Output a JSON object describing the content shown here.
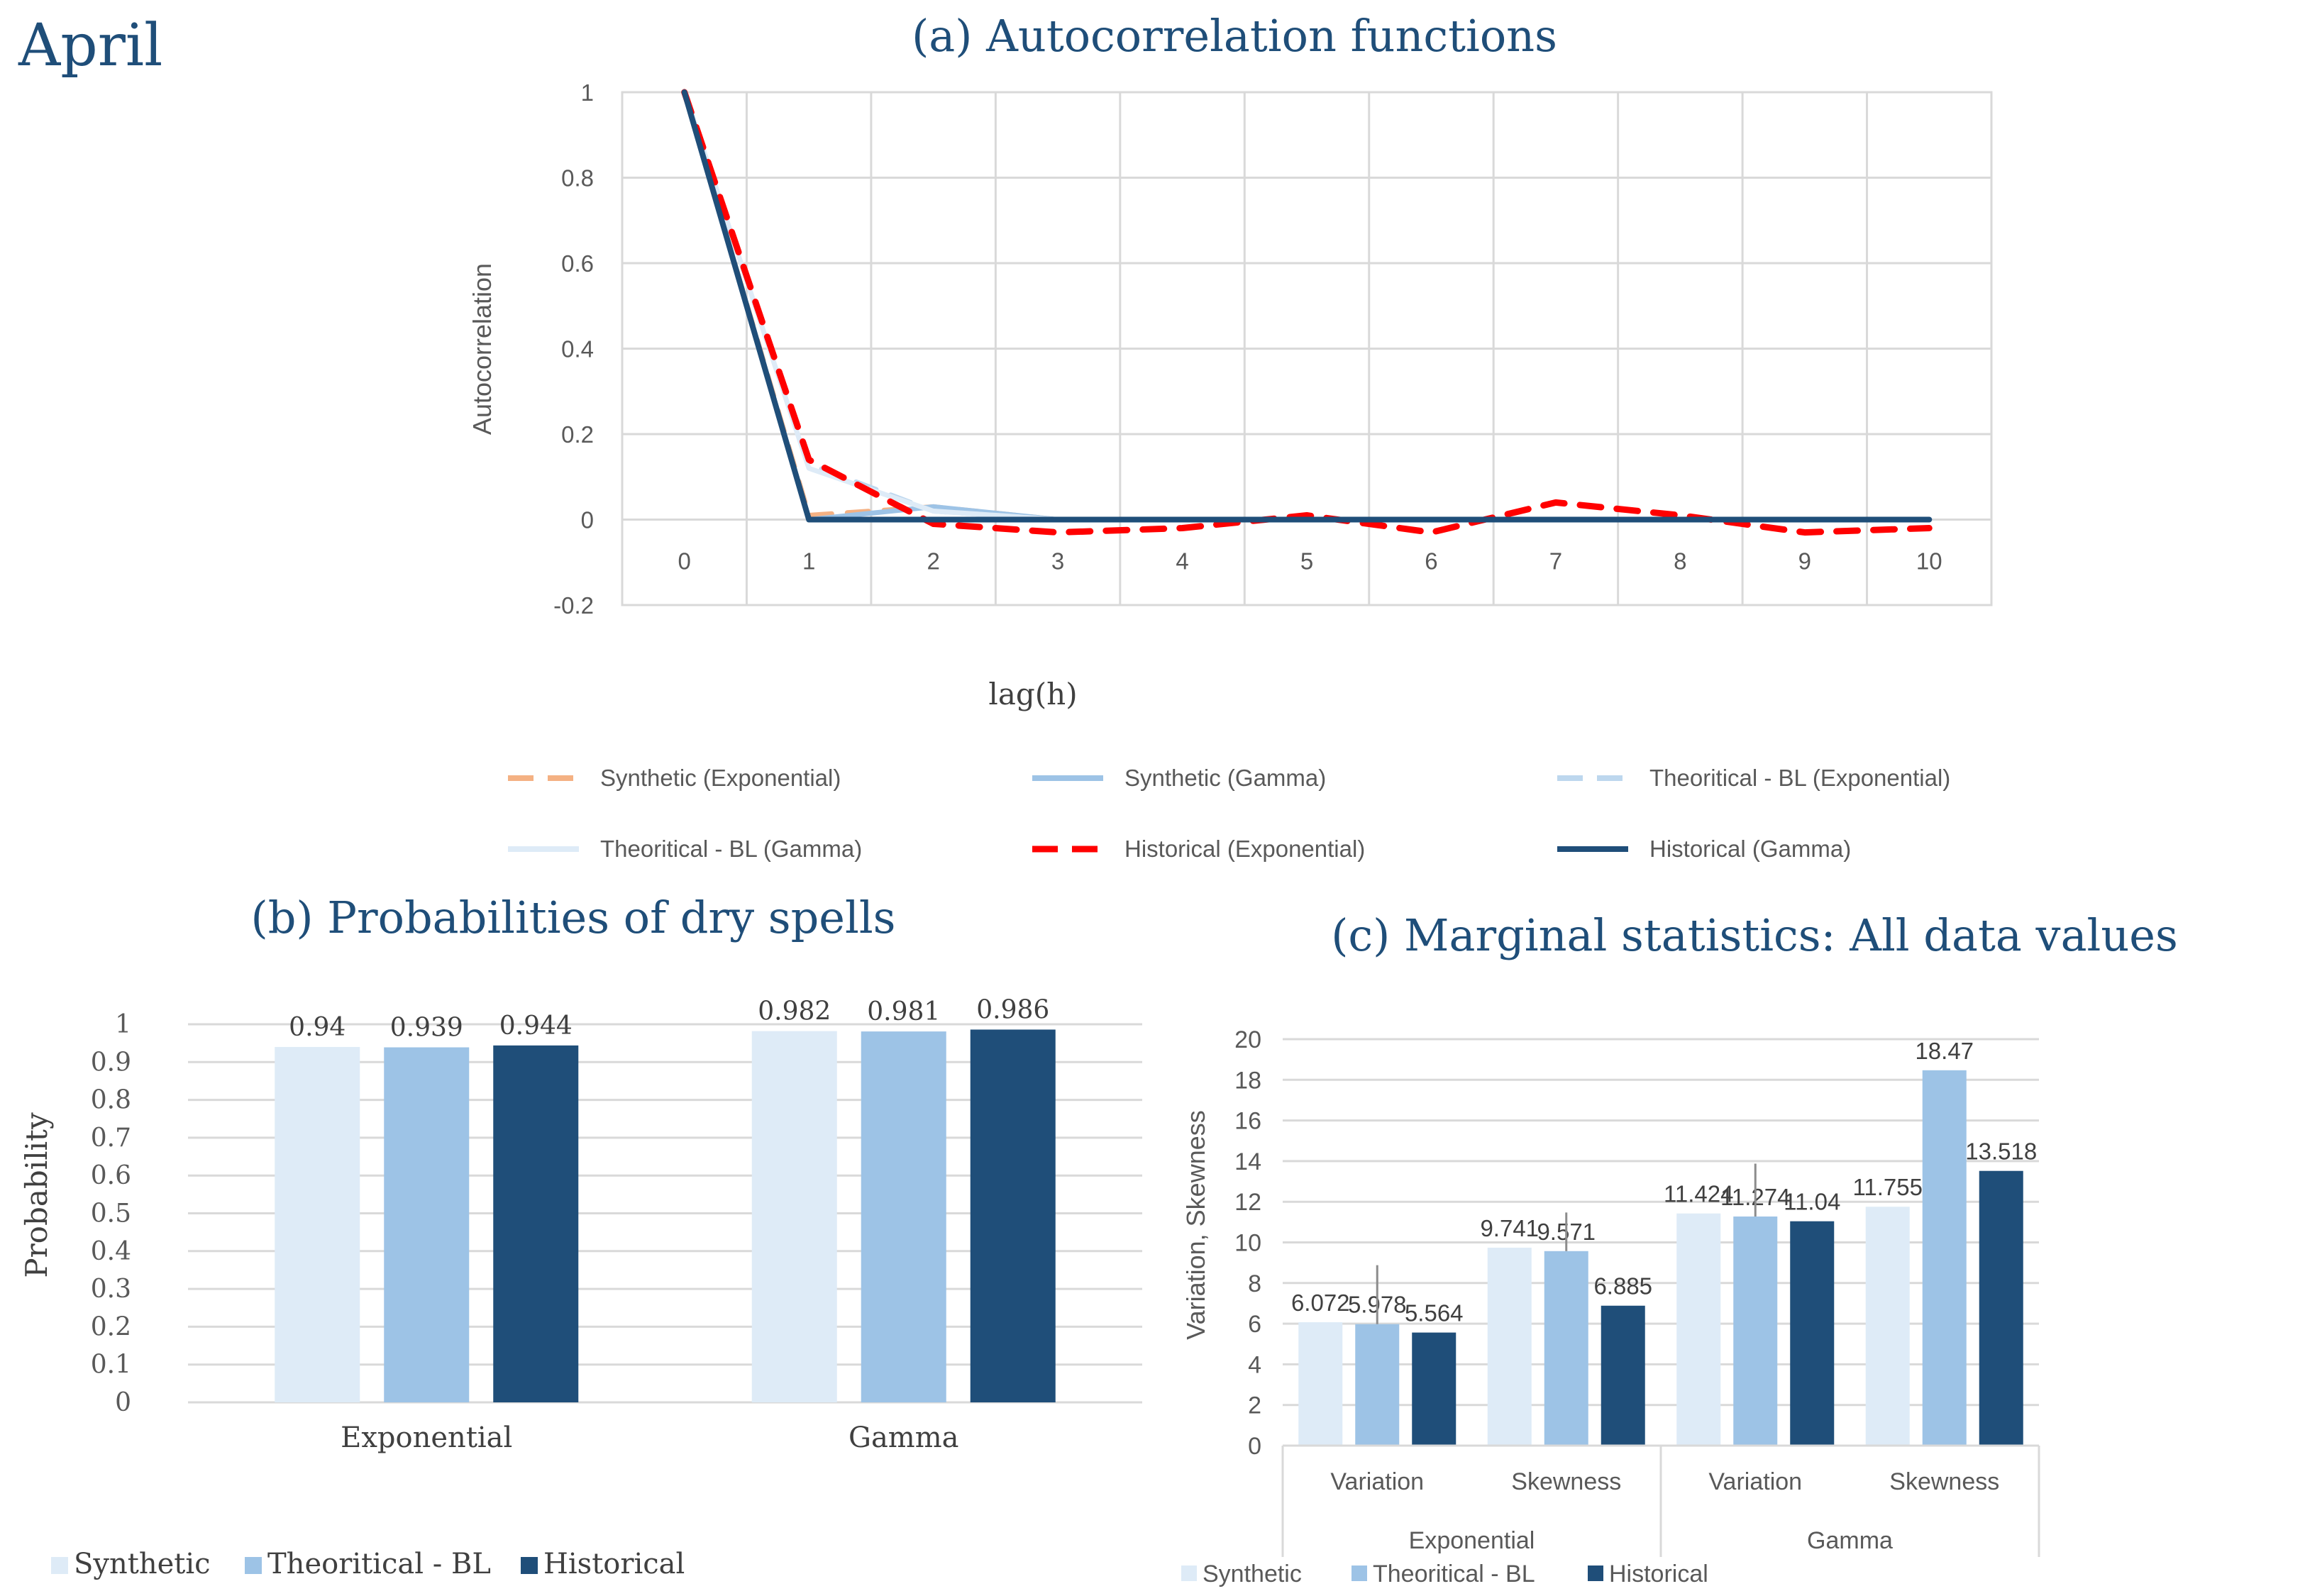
{
  "page": {
    "title": "April"
  },
  "colors": {
    "synthetic_exp": "#F4B183",
    "synthetic_gamma": "#9DC3E6",
    "theo_exp": "#BDD7EE",
    "theo_gamma": "#DEEBF7",
    "hist_exp": "#FF0000",
    "hist_gamma": "#1F4E79",
    "bar_synthetic": "#DEEBF7",
    "bar_theoretical": "#9DC3E6",
    "bar_historical": "#1F4E79",
    "title": "#1F4E79",
    "grid": "#D9D9D9",
    "axis_text": "#595959"
  },
  "chart_data": [
    {
      "id": "a",
      "type": "line",
      "title": "(a) Autocorrelation functions",
      "xlabel": "lag(h)",
      "ylabel": "Autocorrelation",
      "x": [
        0,
        1,
        2,
        3,
        4,
        5,
        6,
        7,
        8,
        9,
        10
      ],
      "xticks": [
        "0",
        "1",
        "2",
        "3",
        "4",
        "5",
        "6",
        "7",
        "8",
        "9",
        "10"
      ],
      "ylim": [
        -0.2,
        1
      ],
      "yticks": [
        "1",
        "0.8",
        "0.6",
        "0.4",
        "0.2",
        "0",
        "-0.2"
      ],
      "ytick_values": [
        1,
        0.8,
        0.6,
        0.4,
        0.2,
        0,
        -0.2
      ],
      "grid": true,
      "legend_position": "bottom",
      "series": [
        {
          "key": "synthetic_exp",
          "name": "Synthetic (Exponential)",
          "style": "dashed",
          "values": [
            1,
            0.01,
            0.03,
            0.0,
            0,
            0,
            0,
            0,
            0,
            0,
            0
          ]
        },
        {
          "key": "synthetic_gamma",
          "name": "Synthetic (Gamma)",
          "style": "solid",
          "values": [
            1,
            0.0,
            0.03,
            0.0,
            0,
            0,
            0,
            0,
            0,
            0,
            0
          ]
        },
        {
          "key": "theo_exp",
          "name": "Theoritical - BL (Exponential)",
          "style": "dashed",
          "values": [
            1,
            0.13,
            0.02,
            0.0,
            0,
            0,
            0,
            0,
            0,
            0,
            0
          ]
        },
        {
          "key": "theo_gamma",
          "name": "Theoritical - BL (Gamma)",
          "style": "solid",
          "values": [
            1,
            0.12,
            0.02,
            0.0,
            0,
            0,
            0,
            0,
            0,
            0,
            0
          ]
        },
        {
          "key": "hist_exp",
          "name": "Historical (Exponential)",
          "style": "dashed",
          "values": [
            1,
            0.14,
            -0.01,
            -0.03,
            -0.02,
            0.01,
            -0.03,
            0.04,
            0.01,
            -0.03,
            -0.02
          ]
        },
        {
          "key": "hist_gamma",
          "name": "Historical (Gamma)",
          "style": "solid",
          "values": [
            1,
            0,
            0,
            0,
            0,
            0,
            0,
            0,
            0,
            0,
            0
          ]
        }
      ]
    },
    {
      "id": "b",
      "type": "bar",
      "title": "(b) Probabilities of dry spells",
      "xlabel": "",
      "ylabel": "Probability",
      "categories": [
        "Exponential",
        "Gamma"
      ],
      "ylim": [
        0,
        1
      ],
      "yticks": [
        "1",
        "0.9",
        "0.8",
        "0.7",
        "0.6",
        "0.5",
        "0.4",
        "0.3",
        "0.2",
        "0.1",
        "0"
      ],
      "ytick_values": [
        1,
        0.9,
        0.8,
        0.7,
        0.6,
        0.5,
        0.4,
        0.3,
        0.2,
        0.1,
        0
      ],
      "grid": true,
      "legend_position": "bottom-left",
      "series": [
        {
          "key": "bar_synthetic",
          "name": "Synthetic",
          "values": [
            0.94,
            0.982
          ],
          "labels": [
            "0.94",
            "0.982"
          ]
        },
        {
          "key": "bar_theoretical",
          "name": "Theoritical - BL",
          "values": [
            0.939,
            0.981
          ],
          "labels": [
            "0.939",
            "0.981"
          ]
        },
        {
          "key": "bar_historical",
          "name": "Historical",
          "values": [
            0.944,
            0.986
          ],
          "labels": [
            "0.944",
            "0.986"
          ]
        }
      ]
    },
    {
      "id": "c",
      "type": "bar",
      "title": "(c) Marginal statistics: All data values",
      "xlabel": "",
      "ylabel": "Variation, Skewness",
      "categories": [
        "Variation",
        "Skewness",
        "Variation",
        "Skewness"
      ],
      "groups": [
        "Exponential",
        "Gamma"
      ],
      "ylim": [
        0,
        20
      ],
      "yticks": [
        "20",
        "18",
        "16",
        "14",
        "12",
        "10",
        "8",
        "6",
        "4",
        "2",
        "0"
      ],
      "ytick_values": [
        20,
        18,
        16,
        14,
        12,
        10,
        8,
        6,
        4,
        2,
        0
      ],
      "grid": true,
      "legend_position": "bottom-left",
      "series": [
        {
          "key": "bar_synthetic",
          "name": "Synthetic",
          "values": [
            6.072,
            9.741,
            11.424,
            11.755
          ],
          "labels": [
            "6.072",
            "9.741",
            "11.424",
            "11.755"
          ]
        },
        {
          "key": "bar_theoretical",
          "name": "Theoritical - BL",
          "values": [
            5.978,
            9.571,
            11.274,
            18.47
          ],
          "labels": [
            "5.978",
            "9.571",
            "11.274",
            "18.47"
          ]
        },
        {
          "key": "bar_historical",
          "name": "Historical",
          "values": [
            5.564,
            6.885,
            11.04,
            13.518
          ],
          "labels": [
            "5.564",
            "6.885",
            "11.04",
            "13.518"
          ]
        }
      ]
    }
  ]
}
